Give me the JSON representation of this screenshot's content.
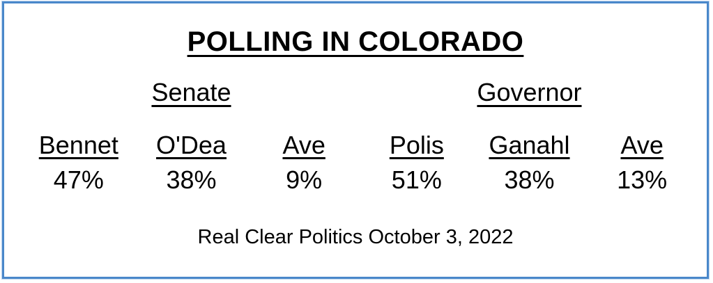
{
  "frame": {
    "border_color": "#4a88ca",
    "background": "#ffffff",
    "text_color": "#000000"
  },
  "title": "POLLING IN COLORADO",
  "race_groups": [
    {
      "label": "Senate",
      "candidates": [
        {
          "name": "Bennet",
          "pct": "47%"
        },
        {
          "name": "O'Dea",
          "pct": "38%"
        },
        {
          "name": "Ave",
          "pct": "9%"
        }
      ]
    },
    {
      "label": "Governor",
      "candidates": [
        {
          "name": "Polis",
          "pct": "51%"
        },
        {
          "name": "Ganahl",
          "pct": "38%"
        },
        {
          "name": "Ave",
          "pct": "13%"
        }
      ]
    }
  ],
  "source": "Real Clear Politics October 3, 2022",
  "chart_data": {
    "type": "table",
    "title": "POLLING IN COLORADO",
    "groups": [
      {
        "name": "Senate",
        "categories": [
          "Bennet",
          "O'Dea",
          "Ave"
        ],
        "values": [
          47,
          38,
          9
        ]
      },
      {
        "name": "Governor",
        "categories": [
          "Polis",
          "Ganahl",
          "Ave"
        ],
        "values": [
          51,
          38,
          13
        ]
      }
    ],
    "units": "percent",
    "source": "Real Clear Politics October 3, 2022"
  }
}
